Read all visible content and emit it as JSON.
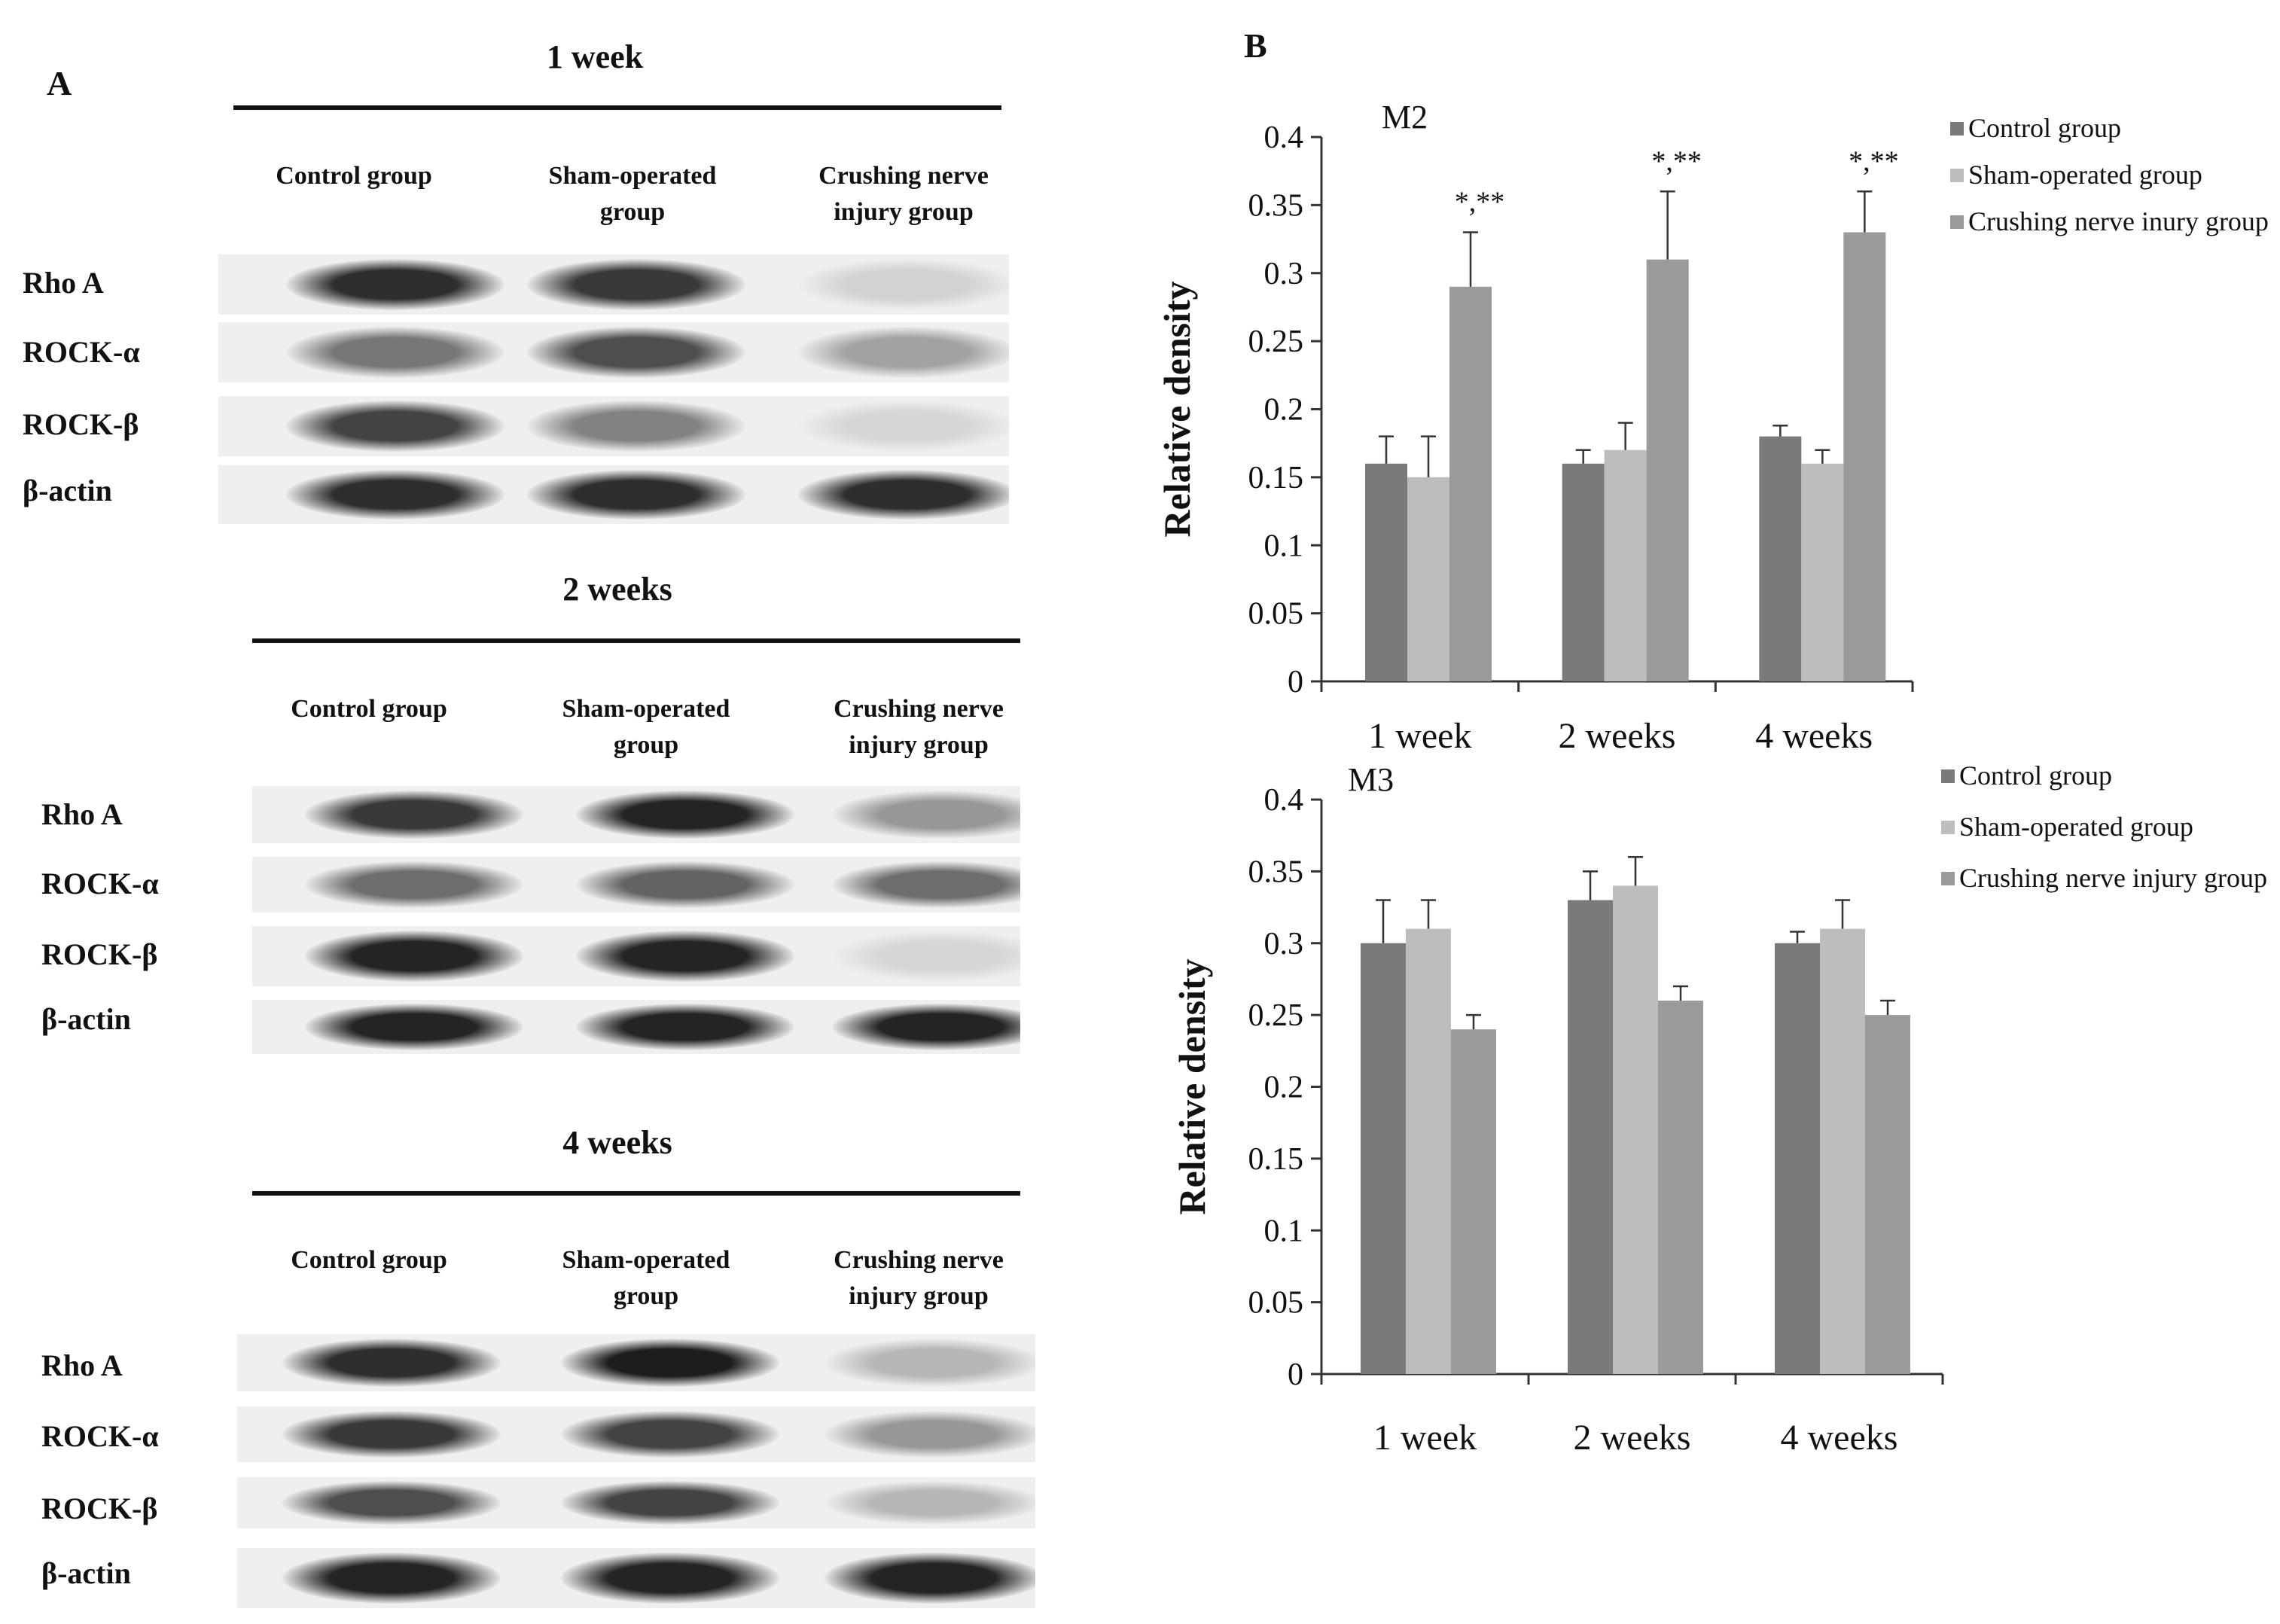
{
  "panelA": {
    "label": "A",
    "blocks": [
      {
        "title": "1 week",
        "groups": [
          "Control group",
          "Sham-operated\ngroup",
          "Crushing nerve\ninjury group"
        ],
        "proteins": [
          "Rho A",
          "ROCK-α",
          "ROCK-β",
          "β-actin"
        ]
      },
      {
        "title": "2 weeks",
        "groups": [
          "Control group",
          "Sham-operated\ngroup",
          "Crushing nerve\ninjury group"
        ],
        "proteins": [
          "Rho A",
          "ROCK-α",
          "ROCK-β",
          "β-actin"
        ]
      },
      {
        "title": "4 weeks",
        "groups": [
          "Control group",
          "Sham-operated\ngroup",
          "Crushing nerve\ninjury group"
        ],
        "proteins": [
          "Rho A",
          "ROCK-α",
          "ROCK-β",
          "β-actin"
        ]
      }
    ]
  },
  "panelB": {
    "label": "B"
  },
  "chart_data": [
    {
      "type": "bar",
      "title": "M2",
      "ylabel": "Relative density",
      "xlabel": "",
      "categories": [
        "1 week",
        "2 weeks",
        "4 weeks"
      ],
      "ylim": [
        0,
        0.4
      ],
      "yticks": [
        "0",
        "0.05",
        "0.1",
        "0.15",
        "0.2",
        "0.25",
        "0.3",
        "0.35",
        "0.4"
      ],
      "legend_position": "top-right",
      "grid": false,
      "series": [
        {
          "name": "Control group",
          "values": [
            0.16,
            0.16,
            0.18
          ],
          "errors": [
            0.02,
            0.01,
            0.008
          ],
          "color": "#7a7a7a"
        },
        {
          "name": "Sham-operated group",
          "values": [
            0.15,
            0.17,
            0.16
          ],
          "errors": [
            0.03,
            0.02,
            0.01
          ],
          "color": "#bdbdbd"
        },
        {
          "name": "Crushing nerve inury group",
          "values": [
            0.29,
            0.31,
            0.33
          ],
          "errors": [
            0.04,
            0.05,
            0.03
          ],
          "color": "#9a9a9a"
        }
      ],
      "annotations": [
        "*,**",
        "*,**",
        "*,**"
      ]
    },
    {
      "type": "bar",
      "title": "M3",
      "ylabel": "Relative density",
      "xlabel": "",
      "categories": [
        "1 week",
        "2 weeks",
        "4 weeks"
      ],
      "ylim": [
        0,
        0.4
      ],
      "yticks": [
        "0",
        "0.05",
        "0.1",
        "0.15",
        "0.2",
        "0.25",
        "0.3",
        "0.35",
        "0.4"
      ],
      "legend_position": "top-right",
      "grid": false,
      "series": [
        {
          "name": "Control group",
          "values": [
            0.3,
            0.33,
            0.3
          ],
          "errors": [
            0.03,
            0.02,
            0.008
          ],
          "color": "#7a7a7a"
        },
        {
          "name": "Sham-operated group",
          "values": [
            0.31,
            0.34,
            0.31
          ],
          "errors": [
            0.02,
            0.02,
            0.02
          ],
          "color": "#bdbdbd"
        },
        {
          "name": "Crushing nerve injury group",
          "values": [
            0.24,
            0.26,
            0.25
          ],
          "errors": [
            0.01,
            0.01,
            0.01
          ],
          "color": "#9a9a9a"
        }
      ],
      "annotations": []
    }
  ]
}
